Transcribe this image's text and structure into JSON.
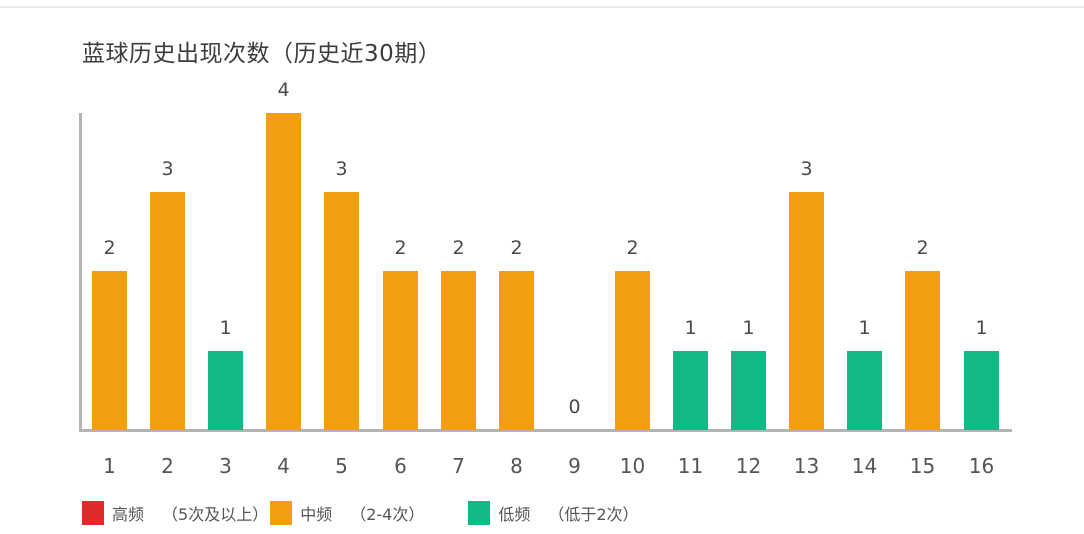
{
  "chart_data": {
    "type": "bar",
    "title": "蓝球历史出现次数（历史近30期）",
    "xlabel": "",
    "ylabel": "",
    "ylim": [
      0,
      4
    ],
    "grid": false,
    "legend_position": "bottom-left",
    "categories": [
      "1",
      "2",
      "3",
      "4",
      "5",
      "6",
      "7",
      "8",
      "9",
      "10",
      "11",
      "12",
      "13",
      "14",
      "15",
      "16"
    ],
    "values": [
      2,
      3,
      1,
      4,
      3,
      2,
      2,
      2,
      0,
      2,
      1,
      1,
      3,
      1,
      2,
      1
    ],
    "legend": [
      {
        "name": "高频",
        "range": "（5次及以上）",
        "color": "#e02a2a"
      },
      {
        "name": "中频",
        "range": "（2-4次）",
        "color": "#f29d12"
      },
      {
        "name": "低频",
        "range": "（低于2次）",
        "color": "#12b886"
      }
    ]
  },
  "colors": {
    "high": "#e02a2a",
    "mid": "#f29d12",
    "low": "#12b886",
    "axis": "#b4b4b4"
  }
}
